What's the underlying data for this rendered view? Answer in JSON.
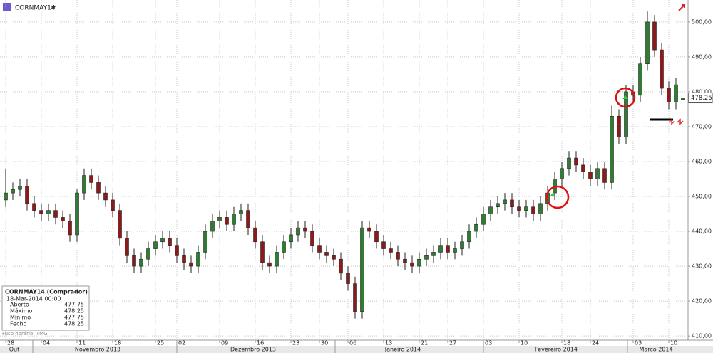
{
  "chart_data": {
    "type": "candlestick",
    "title": "CORNMAY14",
    "footer": "Fuso horário: TMG",
    "categories": [
      "28",
      null,
      null,
      null,
      null,
      "04",
      null,
      null,
      null,
      null,
      "11",
      null,
      null,
      null,
      null,
      "18",
      null,
      null,
      null,
      null,
      null,
      "25",
      null,
      null,
      "02",
      null,
      null,
      null,
      null,
      null,
      "09",
      null,
      null,
      null,
      null,
      "16",
      null,
      null,
      null,
      null,
      "23",
      null,
      null,
      null,
      "30",
      null,
      null,
      null,
      "06",
      null,
      null,
      null,
      null,
      "13",
      null,
      null,
      null,
      null,
      "21",
      null,
      null,
      null,
      "27",
      null,
      null,
      null,
      null,
      "03",
      null,
      null,
      null,
      null,
      "10",
      null,
      null,
      null,
      null,
      null,
      "18",
      null,
      null,
      null,
      "24",
      null,
      null,
      null,
      null,
      null,
      "03",
      null,
      null,
      null,
      null,
      "10",
      null,
      null
    ],
    "months": [
      "Out",
      "Novembro 2013",
      "Dezembro 2013",
      "Janeiro 2014",
      "Fevereiro 2014",
      "Março 2014"
    ],
    "open": [
      449,
      451,
      452,
      453,
      448,
      446,
      445,
      446,
      444,
      443,
      439,
      451,
      456,
      454,
      451,
      449,
      446,
      438,
      433,
      430,
      432,
      435,
      437,
      438,
      436,
      433,
      431,
      430,
      434,
      440,
      443,
      444,
      442,
      445,
      446,
      441,
      437,
      431,
      430,
      434,
      437,
      439,
      441,
      440,
      436,
      434,
      433,
      432,
      428,
      425,
      417,
      441,
      440,
      437,
      435,
      434,
      432,
      431,
      430,
      432,
      433,
      434,
      436,
      434,
      435,
      437,
      440,
      442,
      445,
      447,
      448,
      449,
      447,
      446,
      447,
      445,
      448,
      451,
      455,
      458,
      461,
      459,
      457,
      455,
      458,
      454,
      473,
      467,
      480,
      479,
      488,
      500,
      492,
      481,
      477,
      477.75
    ],
    "high": [
      458,
      454,
      455,
      455,
      450,
      448,
      448,
      448,
      446,
      445,
      452,
      458,
      458,
      456,
      453,
      451,
      448,
      440,
      435,
      434,
      437,
      439,
      440,
      440,
      438,
      435,
      433,
      436,
      442,
      445,
      446,
      446,
      447,
      448,
      448,
      443,
      439,
      433,
      436,
      439,
      441,
      443,
      443,
      442,
      438,
      436,
      435,
      434,
      430,
      427,
      443,
      443,
      442,
      439,
      437,
      436,
      434,
      433,
      434,
      435,
      436,
      438,
      438,
      437,
      439,
      442,
      444,
      447,
      449,
      450,
      451,
      451,
      449,
      449,
      449,
      450,
      453,
      457,
      460,
      463,
      463,
      461,
      459,
      460,
      460,
      476,
      475,
      482,
      482,
      490,
      503,
      502,
      494,
      483,
      484,
      478.25
    ],
    "low": [
      447,
      449,
      450,
      446,
      444,
      443,
      443,
      442,
      441,
      437,
      437,
      449,
      452,
      449,
      447,
      444,
      436,
      431,
      428,
      428,
      430,
      433,
      435,
      434,
      431,
      429,
      428,
      428,
      432,
      438,
      441,
      440,
      440,
      443,
      439,
      435,
      429,
      428,
      428,
      432,
      435,
      437,
      438,
      434,
      432,
      431,
      430,
      426,
      423,
      415,
      415,
      438,
      435,
      433,
      432,
      430,
      429,
      428,
      428,
      430,
      431,
      432,
      432,
      432,
      433,
      435,
      438,
      440,
      443,
      445,
      446,
      445,
      444,
      444,
      443,
      443,
      446,
      449,
      453,
      456,
      457,
      455,
      453,
      453,
      452,
      452,
      465,
      465,
      477,
      477,
      486,
      490,
      479,
      475,
      475,
      477.75
    ],
    "close": [
      451,
      452,
      453,
      448,
      446,
      445,
      446,
      444,
      443,
      439,
      451,
      456,
      454,
      451,
      449,
      446,
      438,
      433,
      430,
      432,
      435,
      437,
      438,
      436,
      433,
      431,
      430,
      434,
      440,
      443,
      444,
      442,
      445,
      446,
      441,
      437,
      431,
      430,
      434,
      437,
      439,
      441,
      440,
      436,
      434,
      433,
      432,
      428,
      425,
      417,
      441,
      440,
      437,
      435,
      434,
      432,
      431,
      430,
      432,
      433,
      434,
      436,
      434,
      435,
      437,
      440,
      442,
      445,
      447,
      448,
      449,
      447,
      446,
      447,
      445,
      448,
      451,
      455,
      458,
      461,
      459,
      457,
      455,
      458,
      454,
      473,
      467,
      480,
      479,
      488,
      500,
      492,
      481,
      477,
      482,
      478.25
    ],
    "up_color": "#2f7d32",
    "down_color": "#8b1a1a",
    "ylim": [
      408.8,
      506.3
    ],
    "yticks": [
      {
        "value": 410,
        "label": "410,00"
      },
      {
        "value": 420,
        "label": "420,00"
      },
      {
        "value": 430,
        "label": "430,00"
      },
      {
        "value": 440,
        "label": "440,00"
      },
      {
        "value": 450,
        "label": "450,00"
      },
      {
        "value": 460,
        "label": "460,00"
      },
      {
        "value": 470,
        "label": "470,00"
      },
      {
        "value": 480,
        "label": "480,00"
      },
      {
        "value": 490,
        "label": "490,00"
      },
      {
        "value": 500,
        "label": "500,00"
      }
    ],
    "last_price": {
      "value": 478.25,
      "label": "478,25"
    },
    "grid": true,
    "info": {
      "title": "CORNMAY14 (Comprador)",
      "date": "18-Mar-2014 00:00",
      "rows": [
        {
          "label": "Aberto",
          "value": "477,75"
        },
        {
          "label": "Máximo",
          "value": "478,25"
        },
        {
          "label": "Mínimo",
          "value": "477,75"
        },
        {
          "label": "Fecho",
          "value": "478,25"
        }
      ]
    }
  }
}
